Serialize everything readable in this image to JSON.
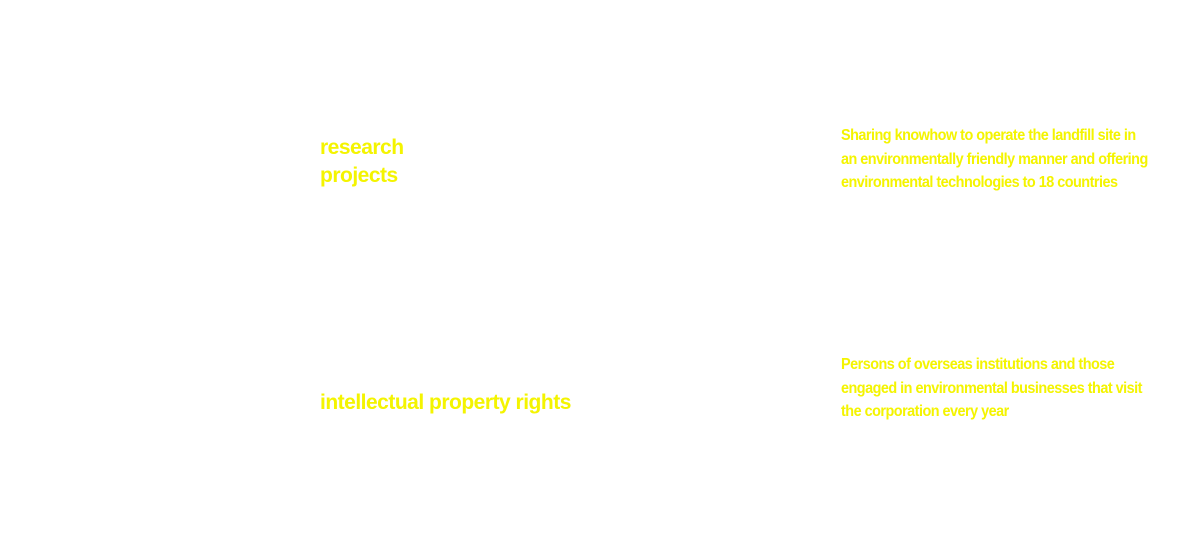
{
  "colors": {
    "background": "#ffffff",
    "text": "#f4f400"
  },
  "items": [
    {
      "label_lines": [
        "research",
        "projects"
      ],
      "description_lines": [
        "Sharing knowhow to operate the landfill site in",
        "an environmentally friendly manner and offering",
        "environmental technologies to 18 countries"
      ]
    },
    {
      "label_lines": [
        "intellectual property rights"
      ],
      "description_lines": [
        "Persons of overseas institutions and those",
        "engaged in environmental businesses that visit",
        "the corporation every year"
      ]
    }
  ]
}
